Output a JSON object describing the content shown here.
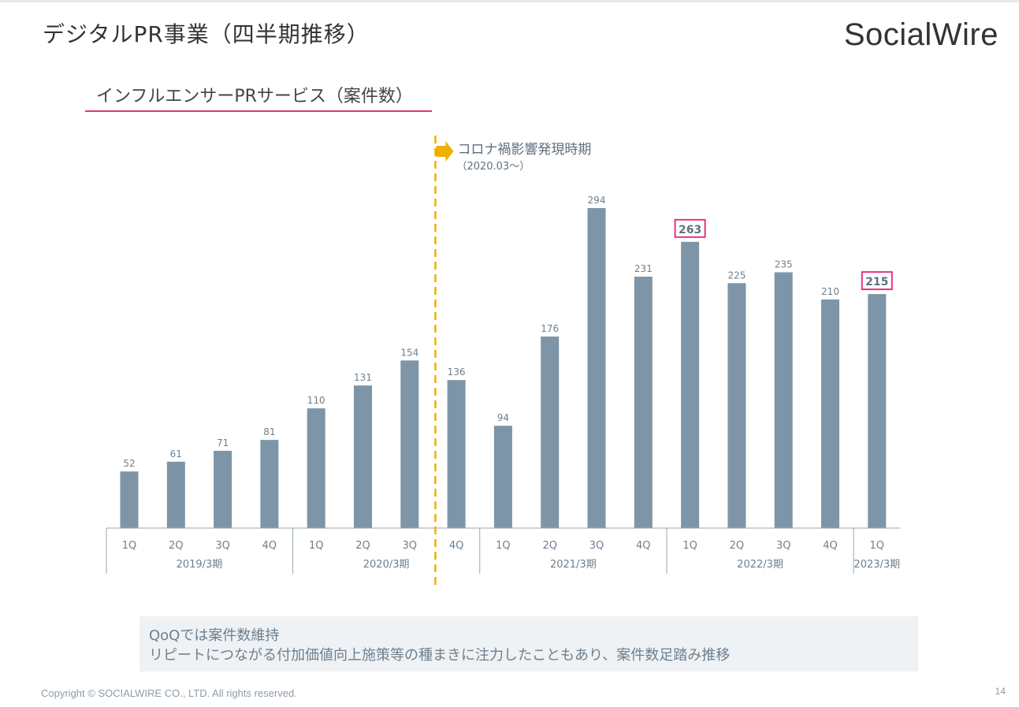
{
  "header": {
    "title": "デジタルPR事業（四半期推移）",
    "logo_text": "SocialWire"
  },
  "section": {
    "subtitle": "インフルエンサーPRサービス（案件数）"
  },
  "annotation": {
    "label": "コロナ禍影響発現時期",
    "sub_label": "（2020.03～）",
    "color": "#f0b000"
  },
  "chart_data": {
    "type": "bar",
    "categories": [
      "1Q",
      "2Q",
      "3Q",
      "4Q",
      "1Q",
      "2Q",
      "3Q",
      "4Q",
      "1Q",
      "2Q",
      "3Q",
      "4Q",
      "1Q",
      "2Q",
      "3Q",
      "4Q",
      "1Q"
    ],
    "values": [
      52,
      61,
      71,
      81,
      110,
      131,
      154,
      136,
      94,
      176,
      294,
      231,
      263,
      225,
      235,
      210,
      215
    ],
    "groups": [
      {
        "label": "2019/3期",
        "count": 4
      },
      {
        "label": "2020/3期",
        "count": 4
      },
      {
        "label": "2021/3期",
        "count": 4
      },
      {
        "label": "2022/3期",
        "count": 4
      },
      {
        "label": "2023/3期",
        "count": 1
      }
    ],
    "highlighted_values": [
      263,
      215
    ],
    "bar_color": "#7d95a7",
    "highlight_color": "#e2347f",
    "ylim": [
      0,
      300
    ],
    "grid": false
  },
  "note": {
    "line1": "QoQでは案件数維持",
    "line2": "リピートにつながる付加価値向上施策等の種まきに注力したこともあり、案件数足踏み推移"
  },
  "footer": {
    "copyright": "Copyright © SOCIALWIRE CO., LTD. All rights reserved.",
    "page_number": "14"
  }
}
